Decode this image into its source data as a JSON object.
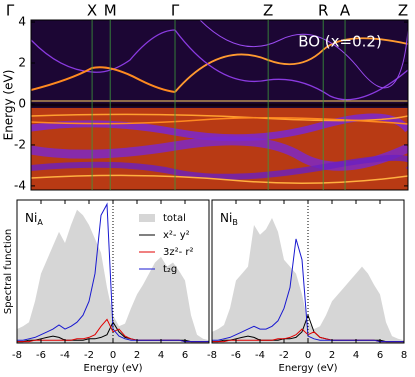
{
  "chart_data": [
    {
      "type": "band-structure",
      "annotation": "BO (x=0.2)",
      "ylabel": "Energy (eV)",
      "ylim": [
        -4.2,
        4.1
      ],
      "yticks": [
        -4,
        -2,
        0,
        2,
        4
      ],
      "xlim": [
        0,
        1
      ],
      "xticks": [
        {
          "value": 0,
          "label": "Γ"
        },
        {
          "value": 0.162,
          "label": "X"
        },
        {
          "value": 0.21,
          "label": "M"
        },
        {
          "value": 0.382,
          "label": "Γ"
        },
        {
          "value": 0.629,
          "label": "Z"
        },
        {
          "value": 0.775,
          "label": "R"
        },
        {
          "value": 0.833,
          "label": "A"
        },
        {
          "value": 1,
          "label": "Z"
        }
      ],
      "kline_color": "#3a9a3a"
    },
    {
      "type": "line",
      "panel_label": {
        "text": "Ni",
        "subscript": "A"
      },
      "xlabel": "Energy (eV)",
      "ylabel": "Spectral function",
      "xlim": [
        -8,
        8
      ],
      "xticks": [
        -8,
        -6,
        -4,
        -2,
        0,
        2,
        4,
        6
      ],
      "ylim": [
        0,
        1.03
      ],
      "vline": 0,
      "legend": "upper right",
      "x": [
        -8,
        -7.5,
        -7,
        -6.5,
        -6,
        -5.5,
        -5,
        -4.5,
        -4,
        -3.5,
        -3,
        -2.5,
        -2,
        -1.5,
        -1,
        -0.5,
        0,
        0.5,
        1,
        1.5,
        2,
        2.5,
        3,
        3.5,
        4,
        4.5,
        5,
        5.5,
        6,
        6.5,
        7,
        7.5,
        8
      ],
      "series": [
        {
          "name": "total",
          "color": "#d6d6d6",
          "area": true,
          "values": [
            0.1,
            0.12,
            0.15,
            0.3,
            0.5,
            0.6,
            0.7,
            0.8,
            0.72,
            0.85,
            0.96,
            0.92,
            0.85,
            0.75,
            0.65,
            0.4,
            0.2,
            0.12,
            0.14,
            0.25,
            0.35,
            0.42,
            0.5,
            0.58,
            0.62,
            0.55,
            0.58,
            0.52,
            0.45,
            0.2,
            0.06,
            0.03,
            0.02
          ]
        },
        {
          "name": "x²- y²",
          "color": "#000000",
          "values": [
            0.01,
            0.01,
            0.02,
            0.02,
            0.03,
            0.04,
            0.05,
            0.04,
            0.02,
            0.02,
            0.02,
            0.02,
            0.03,
            0.03,
            0.04,
            0.06,
            0.15,
            0.08,
            0.04,
            0.03,
            0.02,
            0.02,
            0.02,
            0.02,
            0.02,
            0.02,
            0.02,
            0.02,
            0.02,
            0.01,
            0.01,
            0.01,
            0.01
          ]
        },
        {
          "name": "3z²- r²",
          "color": "#e00000",
          "values": [
            0.01,
            0.01,
            0.01,
            0.02,
            0.02,
            0.02,
            0.02,
            0.02,
            0.02,
            0.02,
            0.03,
            0.03,
            0.04,
            0.06,
            0.12,
            0.17,
            0.08,
            0.1,
            0.05,
            0.03,
            0.02,
            0.02,
            0.02,
            0.02,
            0.02,
            0.02,
            0.02,
            0.02,
            0.01,
            0.01,
            0.01,
            0.01,
            0.01
          ]
        },
        {
          "name": "t₂g",
          "color": "#1818d0",
          "values": [
            0.02,
            0.02,
            0.03,
            0.04,
            0.06,
            0.08,
            0.1,
            0.13,
            0.1,
            0.12,
            0.15,
            0.2,
            0.3,
            0.5,
            0.92,
            1.0,
            0.1,
            0.05,
            0.03,
            0.02,
            0.02,
            0.02,
            0.02,
            0.02,
            0.02,
            0.02,
            0.02,
            0.02,
            0.01,
            0.01,
            0.01,
            0.01,
            0.01
          ]
        }
      ]
    },
    {
      "type": "line",
      "panel_label": {
        "text": "Ni",
        "subscript": "B"
      },
      "xlabel": "Energy (eV)",
      "xlim": [
        -8,
        8
      ],
      "xticks": [
        -8,
        -6,
        -4,
        -2,
        0,
        2,
        4,
        6,
        8
      ],
      "ylim": [
        0,
        1.03
      ],
      "vline": 0,
      "legend": false,
      "x": [
        -8,
        -7.5,
        -7,
        -6.5,
        -6,
        -5.5,
        -5,
        -4.5,
        -4,
        -3.5,
        -3,
        -2.5,
        -2,
        -1.5,
        -1,
        -0.5,
        0,
        0.5,
        1,
        1.5,
        2,
        2.5,
        3,
        3.5,
        4,
        4.5,
        5,
        5.5,
        6,
        6.5,
        7,
        7.5,
        8
      ],
      "series": [
        {
          "name": "total",
          "color": "#d6d6d6",
          "area": true,
          "values": [
            0.08,
            0.1,
            0.13,
            0.25,
            0.45,
            0.5,
            0.55,
            0.85,
            0.78,
            0.82,
            0.9,
            0.8,
            0.6,
            0.55,
            0.5,
            0.35,
            0.15,
            0.1,
            0.12,
            0.2,
            0.3,
            0.35,
            0.4,
            0.45,
            0.5,
            0.55,
            0.5,
            0.42,
            0.35,
            0.15,
            0.05,
            0.03,
            0.02
          ]
        },
        {
          "name": "x²- y²",
          "color": "#000000",
          "values": [
            0.01,
            0.01,
            0.02,
            0.02,
            0.03,
            0.04,
            0.05,
            0.04,
            0.02,
            0.02,
            0.02,
            0.02,
            0.03,
            0.03,
            0.04,
            0.08,
            0.2,
            0.08,
            0.04,
            0.03,
            0.02,
            0.02,
            0.02,
            0.02,
            0.02,
            0.02,
            0.02,
            0.02,
            0.02,
            0.01,
            0.01,
            0.01,
            0.01
          ]
        },
        {
          "name": "3z²- r²",
          "color": "#e00000",
          "values": [
            0.01,
            0.01,
            0.01,
            0.02,
            0.02,
            0.02,
            0.02,
            0.02,
            0.02,
            0.02,
            0.02,
            0.03,
            0.03,
            0.04,
            0.06,
            0.1,
            0.06,
            0.08,
            0.04,
            0.03,
            0.02,
            0.02,
            0.02,
            0.02,
            0.02,
            0.02,
            0.02,
            0.02,
            0.01,
            0.01,
            0.01,
            0.01,
            0.01
          ]
        },
        {
          "name": "t₂g",
          "color": "#1818d0",
          "values": [
            0.02,
            0.02,
            0.03,
            0.04,
            0.06,
            0.08,
            0.1,
            0.12,
            0.1,
            0.1,
            0.12,
            0.16,
            0.25,
            0.4,
            0.75,
            0.6,
            0.05,
            0.03,
            0.02,
            0.02,
            0.02,
            0.02,
            0.02,
            0.02,
            0.02,
            0.02,
            0.02,
            0.02,
            0.01,
            0.01,
            0.01,
            0.01,
            0.01
          ]
        }
      ]
    }
  ]
}
